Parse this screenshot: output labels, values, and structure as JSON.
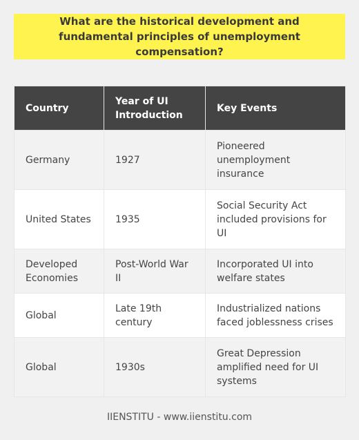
{
  "question": "What are the historical development and fundamental principles of unemployment compensation?",
  "table": {
    "headers": [
      "Country",
      "Year of UI Introduction",
      "Key Events"
    ],
    "rows": [
      [
        "Germany",
        "1927",
        "Pioneered unemployment insurance"
      ],
      [
        "United States",
        "1935",
        "Social Security Act included provisions for UI"
      ],
      [
        "Developed Economies",
        "Post-World War II",
        "Incorporated UI into welfare states"
      ],
      [
        "Global",
        "Late 19th century",
        "Industrialized nations faced joblessness crises"
      ],
      [
        "Global",
        "1930s",
        "Great Depression amplified need for UI systems"
      ]
    ]
  },
  "footer": "IIENSTITU - www.iienstitu.com",
  "colors": {
    "question_bg": "#fff44f",
    "header_bg": "#444444",
    "row_odd_bg": "#f2f2f2",
    "row_even_bg": "#ffffff",
    "page_bg": "#f0f0f0"
  }
}
